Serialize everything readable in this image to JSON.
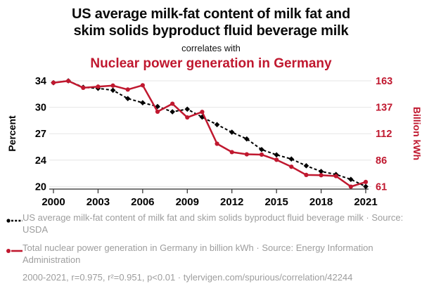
{
  "colors": {
    "accent": "#c0182f",
    "muted": "#9d9d9d",
    "grid": "#e6e6e6",
    "axis_line": "#2b2b2b",
    "black_series": "#000000"
  },
  "header": {
    "title_line1": "US average milk-fat content of milk fat and",
    "title_line2": "skim solids byproduct fluid beverage milk",
    "connector": "correlates with",
    "subtitle": "Nuclear power generation in Germany"
  },
  "chart_data": {
    "type": "line",
    "x": [
      2000,
      2001,
      2002,
      2003,
      2004,
      2005,
      2006,
      2007,
      2008,
      2009,
      2010,
      2011,
      2012,
      2013,
      2014,
      2015,
      2016,
      2017,
      2018,
      2019,
      2020,
      2021
    ],
    "x_ticks": [
      2000,
      2003,
      2006,
      2009,
      2012,
      2015,
      2018,
      2021
    ],
    "left_axis": {
      "label": "Percent",
      "min": 20,
      "max": 34,
      "tick_labels": [
        "34",
        "30",
        "27",
        "24",
        "20"
      ]
    },
    "right_axis": {
      "label": "Billion kWh",
      "min": 61,
      "max": 163,
      "tick_labels": [
        "163",
        "137",
        "112",
        "86",
        "61"
      ]
    },
    "grid": true,
    "legend_position": "bottom",
    "series": [
      {
        "name": "US average milk-fat content of milk fat and skim solids byproduct fluid beverage milk",
        "axis": "left",
        "color": "#000000",
        "line_style": "dashed",
        "marker": "diamond",
        "values": [
          33.75,
          34.0,
          33.15,
          33.0,
          32.75,
          31.65,
          31.1,
          30.6,
          29.9,
          30.25,
          29.2,
          28.2,
          27.2,
          26.3,
          24.9,
          24.2,
          23.65,
          22.75,
          22.0,
          21.6,
          20.95,
          20.0
        ]
      },
      {
        "name": "Total nuclear power generation in Germany in billion kWh",
        "axis": "right",
        "color": "#c0182f",
        "line_style": "solid",
        "marker": "circle",
        "values": [
          161.2,
          162.9,
          156.3,
          157.4,
          158.4,
          154.6,
          158.7,
          133.2,
          140.9,
          127.7,
          133.0,
          102.3,
          94.2,
          92.1,
          91.8,
          86.8,
          80.1,
          72.2,
          71.9,
          71.1,
          60.9,
          65.4
        ]
      }
    ]
  },
  "legend": {
    "items": [
      {
        "text": "US average milk-fat content of milk fat and skim solids byproduct fluid beverage milk · Source: USDA"
      },
      {
        "text": "Total nuclear power generation in Germany in billion kWh · Source: Energy Information Administration"
      }
    ],
    "footer": "2000-2021, r=0.975, r²=0.951, p<0.01 · tylervigen.com/spurious/correlation/42244"
  }
}
